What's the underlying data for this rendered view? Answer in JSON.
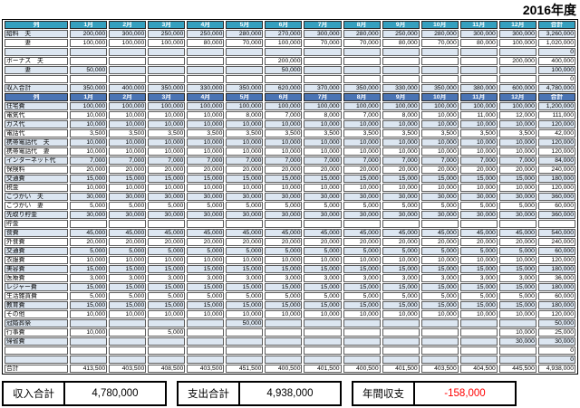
{
  "title": "2016年度",
  "colors": {
    "header_teal": "#35a0bf",
    "header_blue": "#4a74b4",
    "stripe_light": "#dce6f1",
    "negative_text": "#ff0000"
  },
  "table": {
    "corner_label": "列",
    "months": [
      "1月",
      "2月",
      "3月",
      "4月",
      "5月",
      "6月",
      "7月",
      "8月",
      "9月",
      "10月",
      "11月",
      "12月"
    ],
    "total_label": "合計",
    "income_rows": [
      {
        "label": "給料　夫",
        "values": [
          200000,
          300000,
          250000,
          250000,
          280000,
          270000,
          300000,
          280000,
          250000,
          280000,
          300000,
          300000
        ],
        "total": 3260000
      },
      {
        "label": "　　　妻",
        "values": [
          100000,
          100000,
          100000,
          80000,
          70000,
          100000,
          70000,
          70000,
          80000,
          70000,
          80000,
          100000
        ],
        "total": 1020000
      },
      {
        "label": "",
        "values": [
          null,
          null,
          null,
          null,
          null,
          null,
          null,
          null,
          null,
          null,
          null,
          null
        ],
        "total": 0
      },
      {
        "label": "ボーナス　夫",
        "values": [
          null,
          null,
          null,
          null,
          null,
          200000,
          null,
          null,
          null,
          null,
          null,
          200000
        ],
        "total": 400000
      },
      {
        "label": "　　　妻",
        "values": [
          50000,
          null,
          null,
          null,
          null,
          50000,
          null,
          null,
          null,
          null,
          null,
          null
        ],
        "total": 100000
      },
      {
        "label": "",
        "values": [
          null,
          null,
          null,
          null,
          null,
          null,
          null,
          null,
          null,
          null,
          null,
          null
        ],
        "total": 0
      },
      {
        "label": "収入合計",
        "values": [
          350000,
          400000,
          350000,
          330000,
          350000,
          620000,
          370000,
          350000,
          330000,
          350000,
          380000,
          600000
        ],
        "total": 4780000
      }
    ],
    "expense_rows": [
      {
        "label": "住宅費",
        "values": [
          100000,
          100000,
          100000,
          100000,
          100000,
          100000,
          100000,
          100000,
          100000,
          100000,
          100000,
          100000
        ],
        "total": 1200000
      },
      {
        "label": "電気代",
        "values": [
          10000,
          10000,
          10000,
          10000,
          8000,
          7000,
          8000,
          7000,
          8000,
          10000,
          11000,
          12000
        ],
        "total": 111000
      },
      {
        "label": "ガス代",
        "values": [
          10000,
          10000,
          10000,
          10000,
          10000,
          10000,
          10000,
          10000,
          10000,
          10000,
          10000,
          10000
        ],
        "total": 120000
      },
      {
        "label": "電話代",
        "values": [
          3500,
          3500,
          3500,
          3500,
          3500,
          3500,
          3500,
          3500,
          3500,
          3500,
          3500,
          3500
        ],
        "total": 42000
      },
      {
        "label": "携帯電話代　夫",
        "values": [
          10000,
          10000,
          10000,
          10000,
          10000,
          10000,
          10000,
          10000,
          10000,
          10000,
          10000,
          10000
        ],
        "total": 120000
      },
      {
        "label": "携帯電話代　妻",
        "values": [
          10000,
          10000,
          10000,
          10000,
          10000,
          10000,
          10000,
          10000,
          10000,
          10000,
          10000,
          10000
        ],
        "total": 120000
      },
      {
        "label": "インターネット代",
        "values": [
          7000,
          7000,
          7000,
          7000,
          7000,
          7000,
          7000,
          7000,
          7000,
          7000,
          7000,
          7000
        ],
        "total": 84000
      },
      {
        "label": "保険料",
        "values": [
          20000,
          20000,
          20000,
          20000,
          20000,
          20000,
          20000,
          20000,
          20000,
          20000,
          20000,
          20000
        ],
        "total": 240000
      },
      {
        "label": "交通費",
        "values": [
          15000,
          15000,
          15000,
          15000,
          15000,
          15000,
          15000,
          15000,
          15000,
          15000,
          15000,
          15000
        ],
        "total": 180000
      },
      {
        "label": "税金",
        "values": [
          10000,
          10000,
          10000,
          10000,
          10000,
          10000,
          10000,
          10000,
          10000,
          10000,
          10000,
          10000
        ],
        "total": 120000
      },
      {
        "label": "こづかい　夫",
        "values": [
          30000,
          30000,
          30000,
          30000,
          30000,
          30000,
          30000,
          30000,
          30000,
          30000,
          30000,
          30000
        ],
        "total": 360000
      },
      {
        "label": "こづかい　妻",
        "values": [
          5000,
          5000,
          5000,
          5000,
          5000,
          5000,
          5000,
          5000,
          5000,
          5000,
          5000,
          5000
        ],
        "total": 60000
      },
      {
        "label": "先取り貯金",
        "values": [
          30000,
          30000,
          30000,
          30000,
          30000,
          30000,
          30000,
          30000,
          30000,
          30000,
          30000,
          30000
        ],
        "total": 360000
      },
      {
        "label": "貯金",
        "values": [
          null,
          null,
          null,
          null,
          null,
          null,
          null,
          null,
          null,
          null,
          null,
          null
        ],
        "total": null
      },
      {
        "label": "食費",
        "values": [
          45000,
          45000,
          45000,
          45000,
          45000,
          45000,
          45000,
          45000,
          45000,
          45000,
          45000,
          45000
        ],
        "total": 540000
      },
      {
        "label": "外食費",
        "values": [
          20000,
          20000,
          20000,
          20000,
          20000,
          20000,
          20000,
          20000,
          20000,
          20000,
          20000,
          20000
        ],
        "total": 240000
      },
      {
        "label": "交通費",
        "values": [
          5000,
          5000,
          5000,
          5000,
          5000,
          5000,
          5000,
          5000,
          5000,
          5000,
          5000,
          5000
        ],
        "total": 60000
      },
      {
        "label": "衣服費",
        "values": [
          10000,
          10000,
          10000,
          10000,
          10000,
          10000,
          10000,
          10000,
          10000,
          10000,
          10000,
          10000
        ],
        "total": 120000
      },
      {
        "label": "美容費",
        "values": [
          15000,
          15000,
          15000,
          15000,
          15000,
          15000,
          15000,
          15000,
          15000,
          15000,
          15000,
          15000
        ],
        "total": 180000
      },
      {
        "label": "医療費",
        "values": [
          3000,
          3000,
          3000,
          3000,
          3000,
          3000,
          3000,
          3000,
          3000,
          3000,
          3000,
          3000
        ],
        "total": 36000
      },
      {
        "label": "レジャー費",
        "values": [
          15000,
          15000,
          15000,
          15000,
          15000,
          15000,
          15000,
          15000,
          15000,
          15000,
          15000,
          15000
        ],
        "total": 180000
      },
      {
        "label": "生活雑貨費",
        "values": [
          5000,
          5000,
          5000,
          5000,
          5000,
          5000,
          5000,
          5000,
          5000,
          5000,
          5000,
          5000
        ],
        "total": 60000
      },
      {
        "label": "教育費",
        "values": [
          15000,
          15000,
          15000,
          15000,
          15000,
          15000,
          15000,
          15000,
          15000,
          15000,
          15000,
          15000
        ],
        "total": 180000
      },
      {
        "label": "その他",
        "values": [
          10000,
          10000,
          10000,
          10000,
          10000,
          10000,
          10000,
          10000,
          10000,
          10000,
          10000,
          10000
        ],
        "total": 120000
      },
      {
        "label": "冠婚葬祭",
        "values": [
          null,
          null,
          null,
          null,
          50000,
          null,
          null,
          null,
          null,
          null,
          null,
          null
        ],
        "total": 50000
      },
      {
        "label": "行事費",
        "values": [
          10000,
          null,
          5000,
          null,
          null,
          null,
          null,
          null,
          null,
          null,
          null,
          10000
        ],
        "total": 25000
      },
      {
        "label": "帰省費",
        "values": [
          null,
          null,
          null,
          null,
          null,
          null,
          null,
          null,
          null,
          null,
          null,
          30000
        ],
        "total": 30000
      },
      {
        "label": "",
        "values": [
          null,
          null,
          null,
          null,
          null,
          null,
          null,
          null,
          null,
          null,
          null,
          null
        ],
        "total": 0
      },
      {
        "label": "",
        "values": [
          null,
          null,
          null,
          null,
          null,
          null,
          null,
          null,
          null,
          null,
          null,
          null
        ],
        "total": 0
      },
      {
        "label": "合計",
        "values": [
          413500,
          403500,
          408500,
          403500,
          451500,
          400500,
          401500,
          400500,
          401500,
          403500,
          404500,
          445500
        ],
        "total": 4938000
      }
    ]
  },
  "summary": {
    "income_label": "収入合計",
    "income_total": "4,780,000",
    "expense_label": "支出合計",
    "expense_total": "4,938,000",
    "balance_label": "年間収支",
    "balance_total": "-158,000"
  }
}
